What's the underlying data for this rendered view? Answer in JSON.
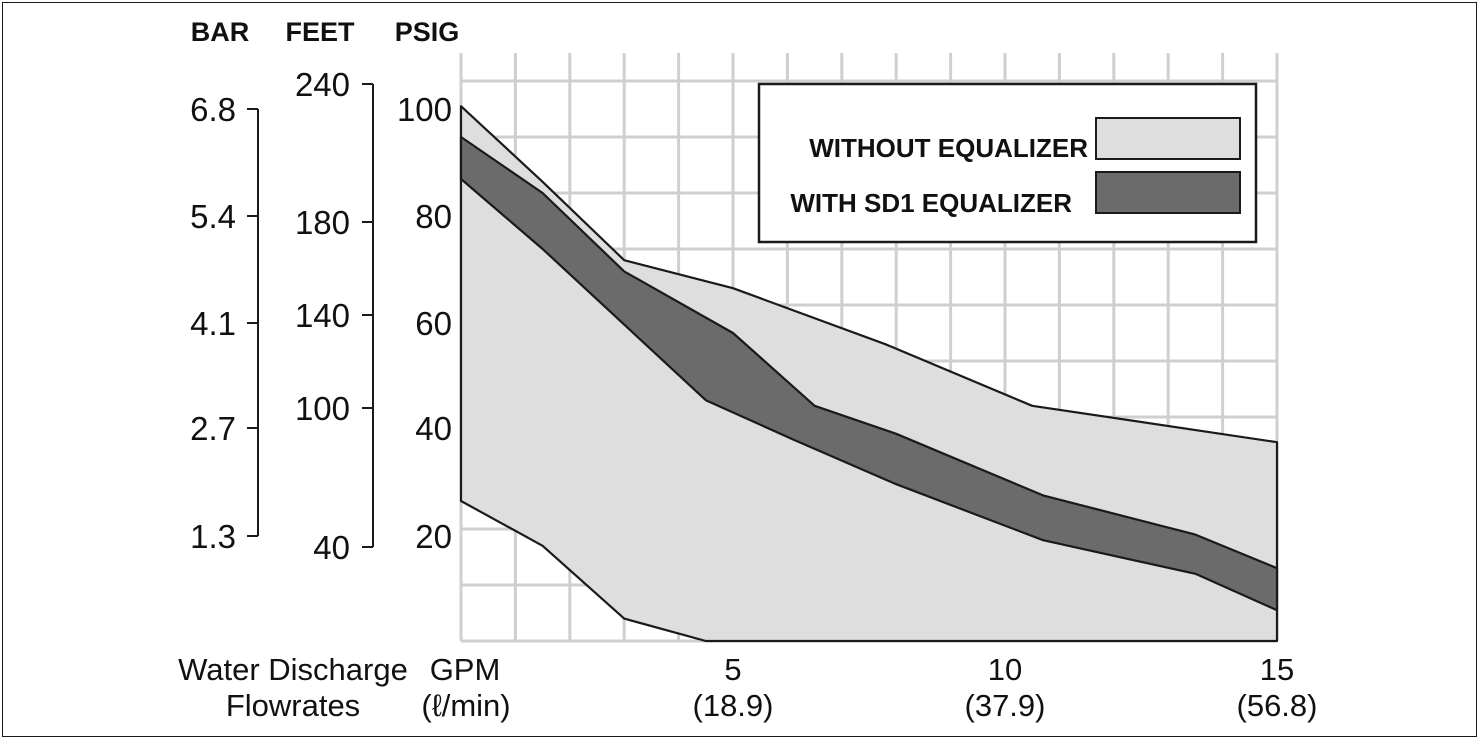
{
  "chart_data": {
    "type": "area",
    "axes": {
      "bar": {
        "label": "BAR",
        "ticks": [
          "6.8",
          "5.4",
          "4.1",
          "2.7",
          "1.3"
        ]
      },
      "feet": {
        "label": "FEET",
        "ticks": [
          "240",
          "180",
          "140",
          "100",
          "40"
        ]
      },
      "psig": {
        "label": "PSIG",
        "ticks": [
          "100",
          "80",
          "60",
          "40",
          "20"
        ]
      }
    },
    "xlabel": [
      "Water Discharge",
      "Flowrates"
    ],
    "x_unit_labels": [
      "GPM",
      "(ℓ/min)"
    ],
    "x_ticks": [
      {
        "value": 5,
        "gpm": "5",
        "lpm": "(18.9)"
      },
      {
        "value": 10,
        "gpm": "10",
        "lpm": "(37.9)"
      },
      {
        "value": 15,
        "gpm": "15",
        "lpm": "(56.8)"
      }
    ],
    "xlim": [
      0,
      15
    ],
    "ylim": [
      0,
      105
    ],
    "grid": true,
    "legend_position": "top-right",
    "series": [
      {
        "name": "WITHOUT EQUALIZER",
        "color": "#dedede",
        "upper": [
          [
            0,
            95.5
          ],
          [
            1.5,
            82
          ],
          [
            3,
            68
          ],
          [
            5,
            63
          ],
          [
            7.8,
            53
          ],
          [
            10.5,
            42
          ],
          [
            15,
            35.5
          ]
        ],
        "lower": [
          [
            0,
            25
          ],
          [
            1.5,
            17
          ],
          [
            3,
            4
          ],
          [
            4.5,
            0
          ],
          [
            15,
            0
          ]
        ]
      },
      {
        "name": "WITH SD1 EQUALIZER",
        "color": "#6b6b6b",
        "upper": [
          [
            0,
            90
          ],
          [
            1.5,
            80
          ],
          [
            3,
            66
          ],
          [
            5,
            55
          ],
          [
            6.5,
            42
          ],
          [
            8,
            37
          ],
          [
            10.7,
            26
          ],
          [
            13.5,
            19
          ],
          [
            15,
            13
          ]
        ],
        "lower": [
          [
            0,
            82.5
          ],
          [
            1.5,
            70
          ],
          [
            3,
            56.5
          ],
          [
            4.5,
            43
          ],
          [
            6.1,
            36
          ],
          [
            8,
            28
          ],
          [
            10.7,
            18
          ],
          [
            13.5,
            12
          ],
          [
            15,
            5.5
          ]
        ]
      }
    ]
  }
}
